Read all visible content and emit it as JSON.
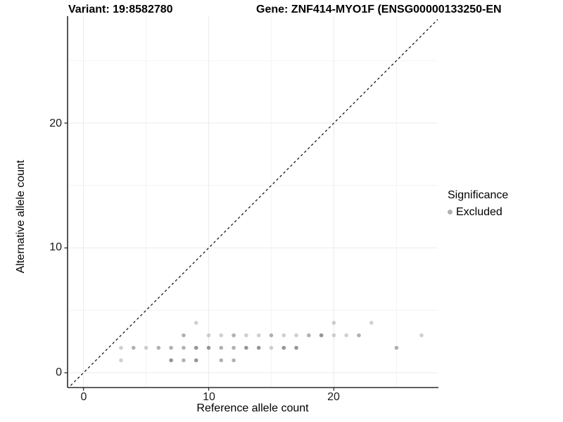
{
  "titles": {
    "variant": "Variant: 19:8582780",
    "gene": "Gene: ZNF414-MYO1F (ENSG00000133250-EN"
  },
  "axes": {
    "x": {
      "label": "Reference allele count",
      "tick_labels": [
        "0",
        "10",
        "20"
      ]
    },
    "y": {
      "label": "Alternative allele count",
      "tick_labels": [
        "0",
        "10",
        "20"
      ]
    }
  },
  "legend": {
    "title": "Significance",
    "items": [
      {
        "label": "Excluded",
        "color": "#b2b2b2"
      }
    ]
  },
  "style": {
    "point_color": "#8c8c8c",
    "axis_line_color": "#2b2b2b",
    "grid_major_color": "#ebebeb",
    "grid_minor_color": "#f3f3f3",
    "identity_line_color": "#1a1a1a",
    "background": "#ffffff"
  },
  "chart_data": {
    "type": "scatter",
    "title": "Variant: 19:8582780 — Gene: ZNF414-MYO1F (ENSG00000133250-EN",
    "xlabel": "Reference allele count",
    "ylabel": "Alternative allele count",
    "x_ticks": [
      0,
      10,
      20
    ],
    "y_ticks": [
      0,
      10,
      20
    ],
    "xlim": [
      -1.3,
      28.4
    ],
    "ylim": [
      -1.2,
      28.6
    ],
    "grid": "on",
    "gridlines_x": [
      0,
      5,
      10,
      15,
      20,
      25
    ],
    "gridlines_y": [
      0,
      5,
      10,
      15,
      20,
      25
    ],
    "identity_line": {
      "style": "dashed",
      "equation": "y = x"
    },
    "legend_position": "right",
    "series": [
      {
        "name": "Excluded",
        "color": "#8c8c8c",
        "points": [
          {
            "x": 3,
            "y": 1,
            "shade": "light"
          },
          {
            "x": 7,
            "y": 1,
            "shade": "dark"
          },
          {
            "x": 8,
            "y": 1,
            "shade": "medium"
          },
          {
            "x": 9,
            "y": 1,
            "shade": "dark"
          },
          {
            "x": 11,
            "y": 1,
            "shade": "medium"
          },
          {
            "x": 12,
            "y": 1,
            "shade": "medium"
          },
          {
            "x": 3,
            "y": 2,
            "shade": "light"
          },
          {
            "x": 4,
            "y": 2,
            "shade": "medium"
          },
          {
            "x": 5,
            "y": 2,
            "shade": "light"
          },
          {
            "x": 6,
            "y": 2,
            "shade": "medium"
          },
          {
            "x": 7,
            "y": 2,
            "shade": "medium"
          },
          {
            "x": 8,
            "y": 2,
            "shade": "medium"
          },
          {
            "x": 9,
            "y": 2,
            "shade": "dark"
          },
          {
            "x": 10,
            "y": 2,
            "shade": "dark"
          },
          {
            "x": 11,
            "y": 2,
            "shade": "medium"
          },
          {
            "x": 12,
            "y": 2,
            "shade": "medium"
          },
          {
            "x": 13,
            "y": 2,
            "shade": "dark"
          },
          {
            "x": 14,
            "y": 2,
            "shade": "dark"
          },
          {
            "x": 15,
            "y": 2,
            "shade": "light"
          },
          {
            "x": 16,
            "y": 2,
            "shade": "dark"
          },
          {
            "x": 17,
            "y": 2,
            "shade": "dark"
          },
          {
            "x": 25,
            "y": 2,
            "shade": "medium"
          },
          {
            "x": 8,
            "y": 3,
            "shade": "medium"
          },
          {
            "x": 10,
            "y": 3,
            "shade": "light"
          },
          {
            "x": 11,
            "y": 3,
            "shade": "light"
          },
          {
            "x": 12,
            "y": 3,
            "shade": "medium"
          },
          {
            "x": 13,
            "y": 3,
            "shade": "light"
          },
          {
            "x": 14,
            "y": 3,
            "shade": "light"
          },
          {
            "x": 15,
            "y": 3,
            "shade": "medium"
          },
          {
            "x": 16,
            "y": 3,
            "shade": "light"
          },
          {
            "x": 17,
            "y": 3,
            "shade": "light"
          },
          {
            "x": 18,
            "y": 3,
            "shade": "medium"
          },
          {
            "x": 19,
            "y": 3,
            "shade": "dark"
          },
          {
            "x": 20,
            "y": 3,
            "shade": "light"
          },
          {
            "x": 21,
            "y": 3,
            "shade": "light"
          },
          {
            "x": 22,
            "y": 3,
            "shade": "medium"
          },
          {
            "x": 27,
            "y": 3,
            "shade": "light"
          },
          {
            "x": 9,
            "y": 4,
            "shade": "light"
          },
          {
            "x": 20,
            "y": 4,
            "shade": "light"
          },
          {
            "x": 23,
            "y": 4,
            "shade": "light"
          }
        ]
      }
    ]
  }
}
